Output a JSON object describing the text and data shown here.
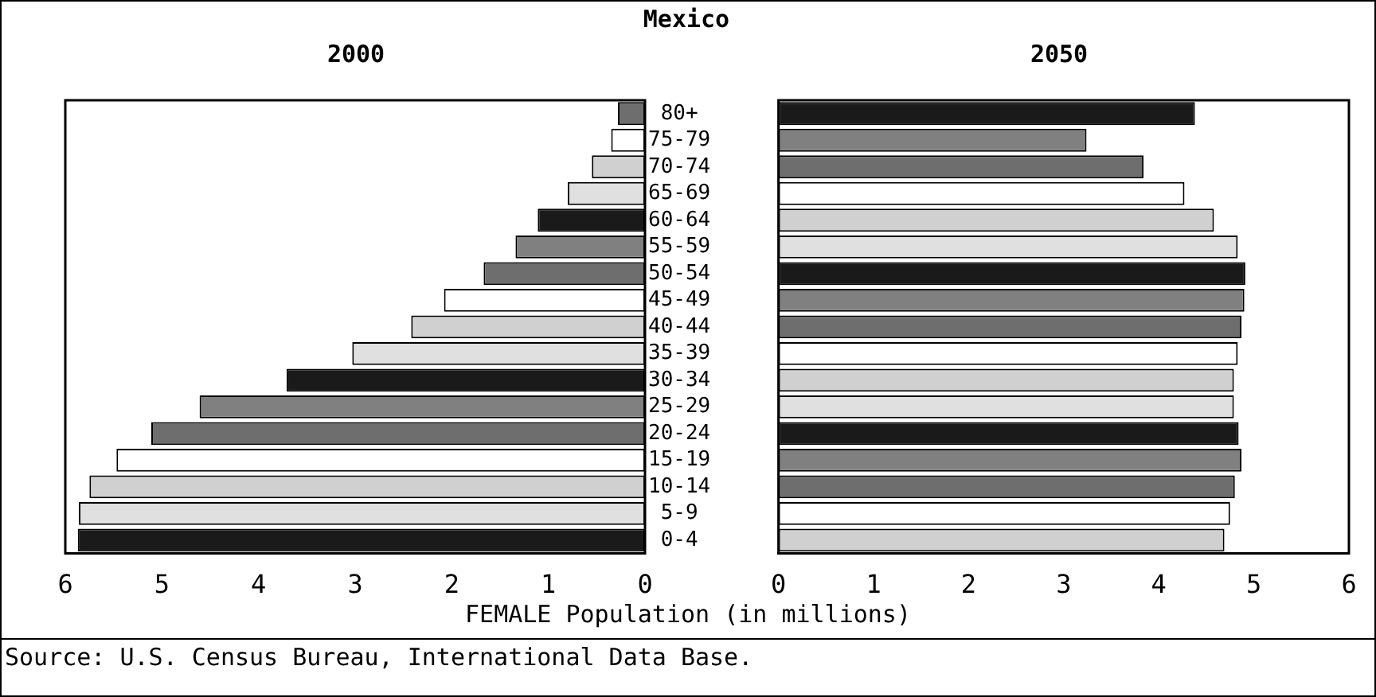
{
  "chart_data": [
    {
      "type": "bar",
      "orientation": "horizontal",
      "title": "Mexico",
      "subtitle": "2000",
      "categories": [
        "80+",
        "75-79",
        "70-74",
        "65-69",
        "60-64",
        "55-59",
        "50-54",
        "45-49",
        "40-44",
        "35-39",
        "30-34",
        "25-29",
        "20-24",
        "15-19",
        "10-14",
        "5-9",
        "0-4"
      ],
      "series": [
        {
          "values": [
            0.28,
            0.35,
            0.55,
            0.8,
            1.11,
            1.34,
            1.67,
            2.08,
            2.42,
            3.03,
            3.71,
            4.61,
            5.11,
            5.47,
            5.75,
            5.86,
            5.87
          ],
          "colors": [
            "#6e6e6e",
            "#ffffff",
            "#d0d0d0",
            "#e0e0e0",
            "#1a1a1a",
            "#808080",
            "#6e6e6e",
            "#ffffff",
            "#d0d0d0",
            "#e0e0e0",
            "#1a1a1a",
            "#808080",
            "#6e6e6e",
            "#ffffff",
            "#d0d0d0",
            "#e0e0e0",
            "#1a1a1a"
          ]
        }
      ],
      "xlim": [
        6,
        0
      ],
      "xticks": [
        0,
        1,
        2,
        3,
        4,
        5,
        6
      ],
      "grid": false,
      "legend": false,
      "annotations": [
        "Source: U.S. Census Bureau, International Data Base."
      ]
    },
    {
      "type": "bar",
      "orientation": "horizontal",
      "subtitle": "2050",
      "xlabel": "FEMALE Population (in millions)",
      "categories": [
        null,
        null,
        null,
        null,
        null,
        null,
        null,
        null,
        null,
        null,
        null,
        null,
        null,
        null,
        null,
        null,
        null
      ],
      "series": [
        {
          "values": [
            4.38,
            3.24,
            3.84,
            4.27,
            4.58,
            4.83,
            4.91,
            4.9,
            4.87,
            4.83,
            4.79,
            4.79,
            4.84,
            4.87,
            4.8,
            4.75,
            4.69
          ],
          "colors": [
            "#1a1a1a",
            "#808080",
            "#6e6e6e",
            "#ffffff",
            "#d0d0d0",
            "#e0e0e0",
            "#1a1a1a",
            "#808080",
            "#6e6e6e",
            "#ffffff",
            "#d0d0d0",
            "#e0e0e0",
            "#1a1a1a",
            "#808080",
            "#6e6e6e",
            "#ffffff",
            "#d0d0d0"
          ]
        }
      ],
      "xlim": [
        0,
        6
      ],
      "xticks": [
        0,
        1,
        2,
        3,
        4,
        5,
        6
      ],
      "grid": false,
      "legend": false,
      "tick_labels": "x"
    }
  ]
}
